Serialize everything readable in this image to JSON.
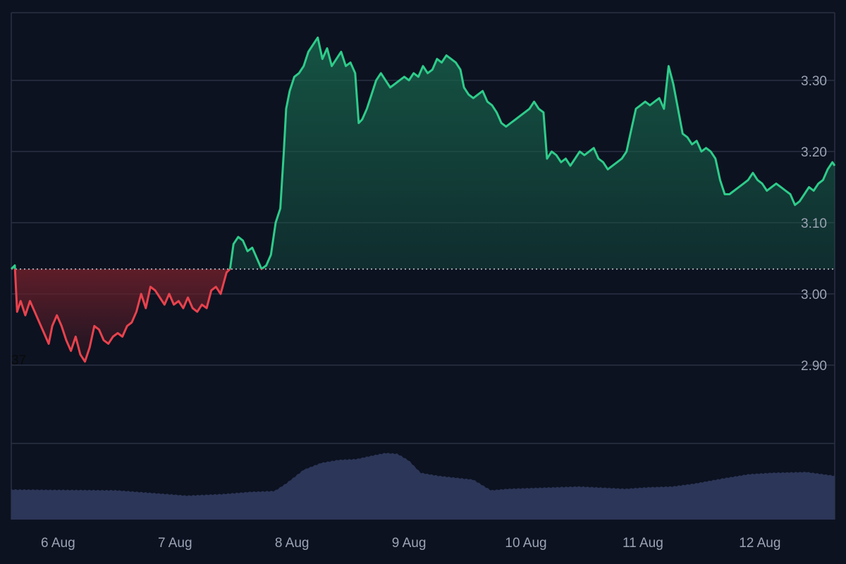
{
  "chart_data": {
    "type": "area",
    "title": "",
    "xlabel": "",
    "ylabel": "",
    "baseline": 3.035,
    "ylim": [
      2.79,
      3.395
    ],
    "y_ticks": [
      "3.30",
      "3.20",
      "3.10",
      "3.00",
      "2.90"
    ],
    "y_tick_values": [
      3.3,
      3.2,
      3.1,
      3.0,
      2.9
    ],
    "x_ticks": [
      "6 Aug",
      "7 Aug",
      "8 Aug",
      "9 Aug",
      "10 Aug",
      "11 Aug",
      "12 Aug"
    ],
    "x_range_days": [
      5.6,
      12.64
    ],
    "stray_label": "37",
    "colors": {
      "up_line": "#2ecc8a",
      "down_line": "#e8424d",
      "up_fill": "#17604a",
      "down_fill": "#6a1f2a",
      "volume": "#2c3658",
      "grid": "#2a3142",
      "baseline": "#c7ccd6"
    },
    "price_points": [
      [
        5.6,
        3.035
      ],
      [
        5.63,
        3.04
      ],
      [
        5.65,
        2.975
      ],
      [
        5.68,
        2.99
      ],
      [
        5.72,
        2.97
      ],
      [
        5.76,
        2.99
      ],
      [
        5.8,
        2.975
      ],
      [
        5.84,
        2.96
      ],
      [
        5.88,
        2.945
      ],
      [
        5.92,
        2.93
      ],
      [
        5.95,
        2.955
      ],
      [
        5.99,
        2.97
      ],
      [
        6.03,
        2.955
      ],
      [
        6.07,
        2.935
      ],
      [
        6.11,
        2.92
      ],
      [
        6.15,
        2.94
      ],
      [
        6.19,
        2.915
      ],
      [
        6.23,
        2.905
      ],
      [
        6.27,
        2.925
      ],
      [
        6.31,
        2.955
      ],
      [
        6.35,
        2.95
      ],
      [
        6.39,
        2.935
      ],
      [
        6.43,
        2.93
      ],
      [
        6.47,
        2.94
      ],
      [
        6.51,
        2.945
      ],
      [
        6.55,
        2.94
      ],
      [
        6.59,
        2.955
      ],
      [
        6.63,
        2.96
      ],
      [
        6.67,
        2.975
      ],
      [
        6.71,
        3.0
      ],
      [
        6.75,
        2.98
      ],
      [
        6.79,
        3.01
      ],
      [
        6.83,
        3.005
      ],
      [
        6.87,
        2.995
      ],
      [
        6.91,
        2.985
      ],
      [
        6.95,
        3.0
      ],
      [
        6.99,
        2.985
      ],
      [
        7.03,
        2.99
      ],
      [
        7.07,
        2.98
      ],
      [
        7.11,
        2.995
      ],
      [
        7.15,
        2.98
      ],
      [
        7.19,
        2.975
      ],
      [
        7.23,
        2.985
      ],
      [
        7.27,
        2.98
      ],
      [
        7.31,
        3.005
      ],
      [
        7.35,
        3.01
      ],
      [
        7.39,
        3.0
      ],
      [
        7.44,
        3.03
      ],
      [
        7.47,
        3.035
      ],
      [
        7.5,
        3.07
      ],
      [
        7.54,
        3.08
      ],
      [
        7.58,
        3.075
      ],
      [
        7.62,
        3.06
      ],
      [
        7.66,
        3.065
      ],
      [
        7.7,
        3.05
      ],
      [
        7.74,
        3.035
      ],
      [
        7.78,
        3.04
      ],
      [
        7.82,
        3.055
      ],
      [
        7.86,
        3.1
      ],
      [
        7.9,
        3.12
      ],
      [
        7.93,
        3.2
      ],
      [
        7.95,
        3.26
      ],
      [
        7.98,
        3.285
      ],
      [
        8.02,
        3.305
      ],
      [
        8.06,
        3.31
      ],
      [
        8.1,
        3.32
      ],
      [
        8.14,
        3.34
      ],
      [
        8.18,
        3.35
      ],
      [
        8.22,
        3.36
      ],
      [
        8.26,
        3.33
      ],
      [
        8.3,
        3.345
      ],
      [
        8.34,
        3.32
      ],
      [
        8.38,
        3.33
      ],
      [
        8.42,
        3.34
      ],
      [
        8.46,
        3.32
      ],
      [
        8.5,
        3.325
      ],
      [
        8.54,
        3.31
      ],
      [
        8.57,
        3.24
      ],
      [
        8.6,
        3.245
      ],
      [
        8.64,
        3.26
      ],
      [
        8.68,
        3.28
      ],
      [
        8.72,
        3.3
      ],
      [
        8.76,
        3.31
      ],
      [
        8.8,
        3.3
      ],
      [
        8.84,
        3.29
      ],
      [
        8.88,
        3.295
      ],
      [
        8.92,
        3.3
      ],
      [
        8.96,
        3.305
      ],
      [
        9.0,
        3.3
      ],
      [
        9.04,
        3.31
      ],
      [
        9.08,
        3.305
      ],
      [
        9.12,
        3.32
      ],
      [
        9.16,
        3.31
      ],
      [
        9.2,
        3.315
      ],
      [
        9.24,
        3.33
      ],
      [
        9.28,
        3.325
      ],
      [
        9.32,
        3.335
      ],
      [
        9.36,
        3.33
      ],
      [
        9.4,
        3.325
      ],
      [
        9.44,
        3.315
      ],
      [
        9.47,
        3.29
      ],
      [
        9.51,
        3.28
      ],
      [
        9.55,
        3.275
      ],
      [
        9.59,
        3.28
      ],
      [
        9.63,
        3.285
      ],
      [
        9.67,
        3.27
      ],
      [
        9.71,
        3.265
      ],
      [
        9.75,
        3.255
      ],
      [
        9.79,
        3.24
      ],
      [
        9.83,
        3.235
      ],
      [
        9.87,
        3.24
      ],
      [
        9.91,
        3.245
      ],
      [
        9.95,
        3.25
      ],
      [
        9.99,
        3.255
      ],
      [
        10.03,
        3.26
      ],
      [
        10.07,
        3.27
      ],
      [
        10.11,
        3.26
      ],
      [
        10.15,
        3.255
      ],
      [
        10.18,
        3.19
      ],
      [
        10.22,
        3.2
      ],
      [
        10.26,
        3.195
      ],
      [
        10.3,
        3.185
      ],
      [
        10.34,
        3.19
      ],
      [
        10.38,
        3.18
      ],
      [
        10.42,
        3.19
      ],
      [
        10.46,
        3.2
      ],
      [
        10.5,
        3.195
      ],
      [
        10.54,
        3.2
      ],
      [
        10.58,
        3.205
      ],
      [
        10.62,
        3.19
      ],
      [
        10.66,
        3.185
      ],
      [
        10.7,
        3.175
      ],
      [
        10.74,
        3.18
      ],
      [
        10.78,
        3.185
      ],
      [
        10.82,
        3.19
      ],
      [
        10.86,
        3.2
      ],
      [
        10.9,
        3.23
      ],
      [
        10.94,
        3.26
      ],
      [
        10.98,
        3.265
      ],
      [
        11.02,
        3.27
      ],
      [
        11.06,
        3.265
      ],
      [
        11.1,
        3.27
      ],
      [
        11.14,
        3.275
      ],
      [
        11.18,
        3.26
      ],
      [
        11.22,
        3.32
      ],
      [
        11.26,
        3.295
      ],
      [
        11.3,
        3.26
      ],
      [
        11.34,
        3.225
      ],
      [
        11.38,
        3.22
      ],
      [
        11.42,
        3.21
      ],
      [
        11.46,
        3.215
      ],
      [
        11.5,
        3.2
      ],
      [
        11.54,
        3.205
      ],
      [
        11.58,
        3.2
      ],
      [
        11.62,
        3.19
      ],
      [
        11.66,
        3.16
      ],
      [
        11.7,
        3.14
      ],
      [
        11.74,
        3.14
      ],
      [
        11.78,
        3.145
      ],
      [
        11.82,
        3.15
      ],
      [
        11.86,
        3.155
      ],
      [
        11.9,
        3.16
      ],
      [
        11.94,
        3.17
      ],
      [
        11.98,
        3.16
      ],
      [
        12.02,
        3.155
      ],
      [
        12.06,
        3.145
      ],
      [
        12.1,
        3.15
      ],
      [
        12.14,
        3.155
      ],
      [
        12.18,
        3.15
      ],
      [
        12.22,
        3.145
      ],
      [
        12.26,
        3.14
      ],
      [
        12.3,
        3.125
      ],
      [
        12.34,
        3.13
      ],
      [
        12.38,
        3.14
      ],
      [
        12.42,
        3.15
      ],
      [
        12.46,
        3.145
      ],
      [
        12.5,
        3.155
      ],
      [
        12.54,
        3.16
      ],
      [
        12.58,
        3.175
      ],
      [
        12.62,
        3.185
      ],
      [
        12.64,
        3.18
      ]
    ],
    "volume_points": [
      [
        5.6,
        0.4
      ],
      [
        6.5,
        0.39
      ],
      [
        7.1,
        0.32
      ],
      [
        7.4,
        0.34
      ],
      [
        7.65,
        0.37
      ],
      [
        7.85,
        0.38
      ],
      [
        7.95,
        0.48
      ],
      [
        8.1,
        0.66
      ],
      [
        8.25,
        0.75
      ],
      [
        8.4,
        0.79
      ],
      [
        8.55,
        0.8
      ],
      [
        8.7,
        0.85
      ],
      [
        8.8,
        0.88
      ],
      [
        8.9,
        0.87
      ],
      [
        9.0,
        0.78
      ],
      [
        9.1,
        0.62
      ],
      [
        9.25,
        0.58
      ],
      [
        9.55,
        0.53
      ],
      [
        9.7,
        0.39
      ],
      [
        9.85,
        0.41
      ],
      [
        10.05,
        0.42
      ],
      [
        10.25,
        0.43
      ],
      [
        10.45,
        0.44
      ],
      [
        10.85,
        0.41
      ],
      [
        11.05,
        0.43
      ],
      [
        11.25,
        0.44
      ],
      [
        11.45,
        0.48
      ],
      [
        11.7,
        0.55
      ],
      [
        11.9,
        0.6
      ],
      [
        12.1,
        0.62
      ],
      [
        12.4,
        0.63
      ],
      [
        12.64,
        0.58
      ]
    ]
  }
}
